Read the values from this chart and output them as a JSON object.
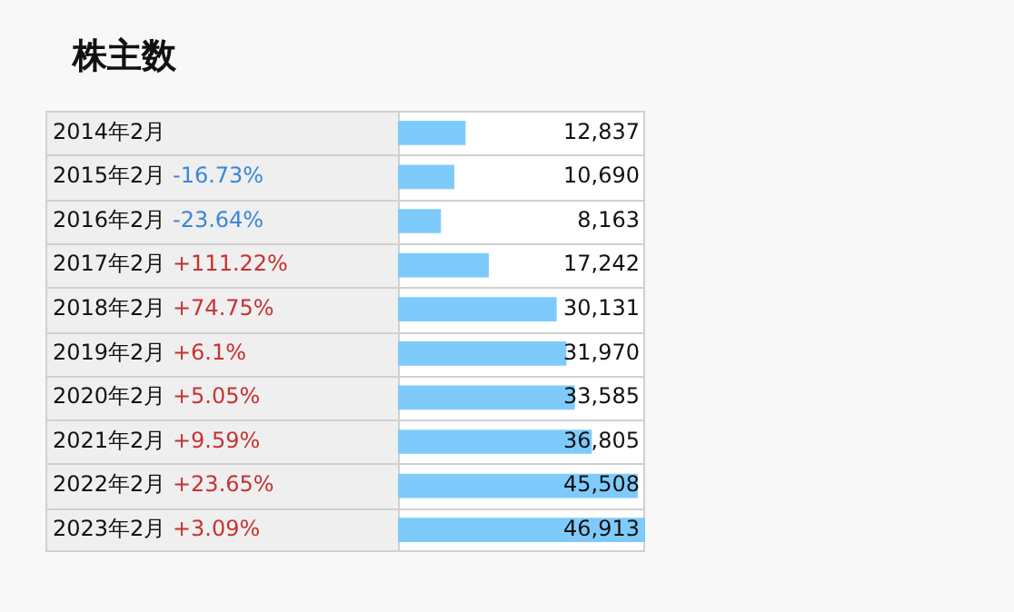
{
  "chart_data": {
    "type": "bar",
    "orientation": "horizontal",
    "title": "株主数",
    "categories": [
      "2014年2月",
      "2015年2月 -16.73%",
      "2016年2月 -23.64%",
      "2017年2月 +111.22%",
      "2018年2月 +74.75%",
      "2019年2月 +6.1%",
      "2020年2月 +5.05%",
      "2021年2月 +9.59%",
      "2022年2月 +23.65%",
      "2023年2月 +3.09%"
    ],
    "values": [
      12837,
      10690,
      8163,
      17242,
      30131,
      31970,
      33585,
      36805,
      45508,
      46913
    ],
    "value_labels": [
      "12,837",
      "10,690",
      "8,163",
      "17,242",
      "30,131",
      "31,970",
      "33,585",
      "36,805",
      "45,508",
      "46,913"
    ],
    "color": "#7ecbfb",
    "tick_labels": "y",
    "grid": "y",
    "legend": false
  }
}
